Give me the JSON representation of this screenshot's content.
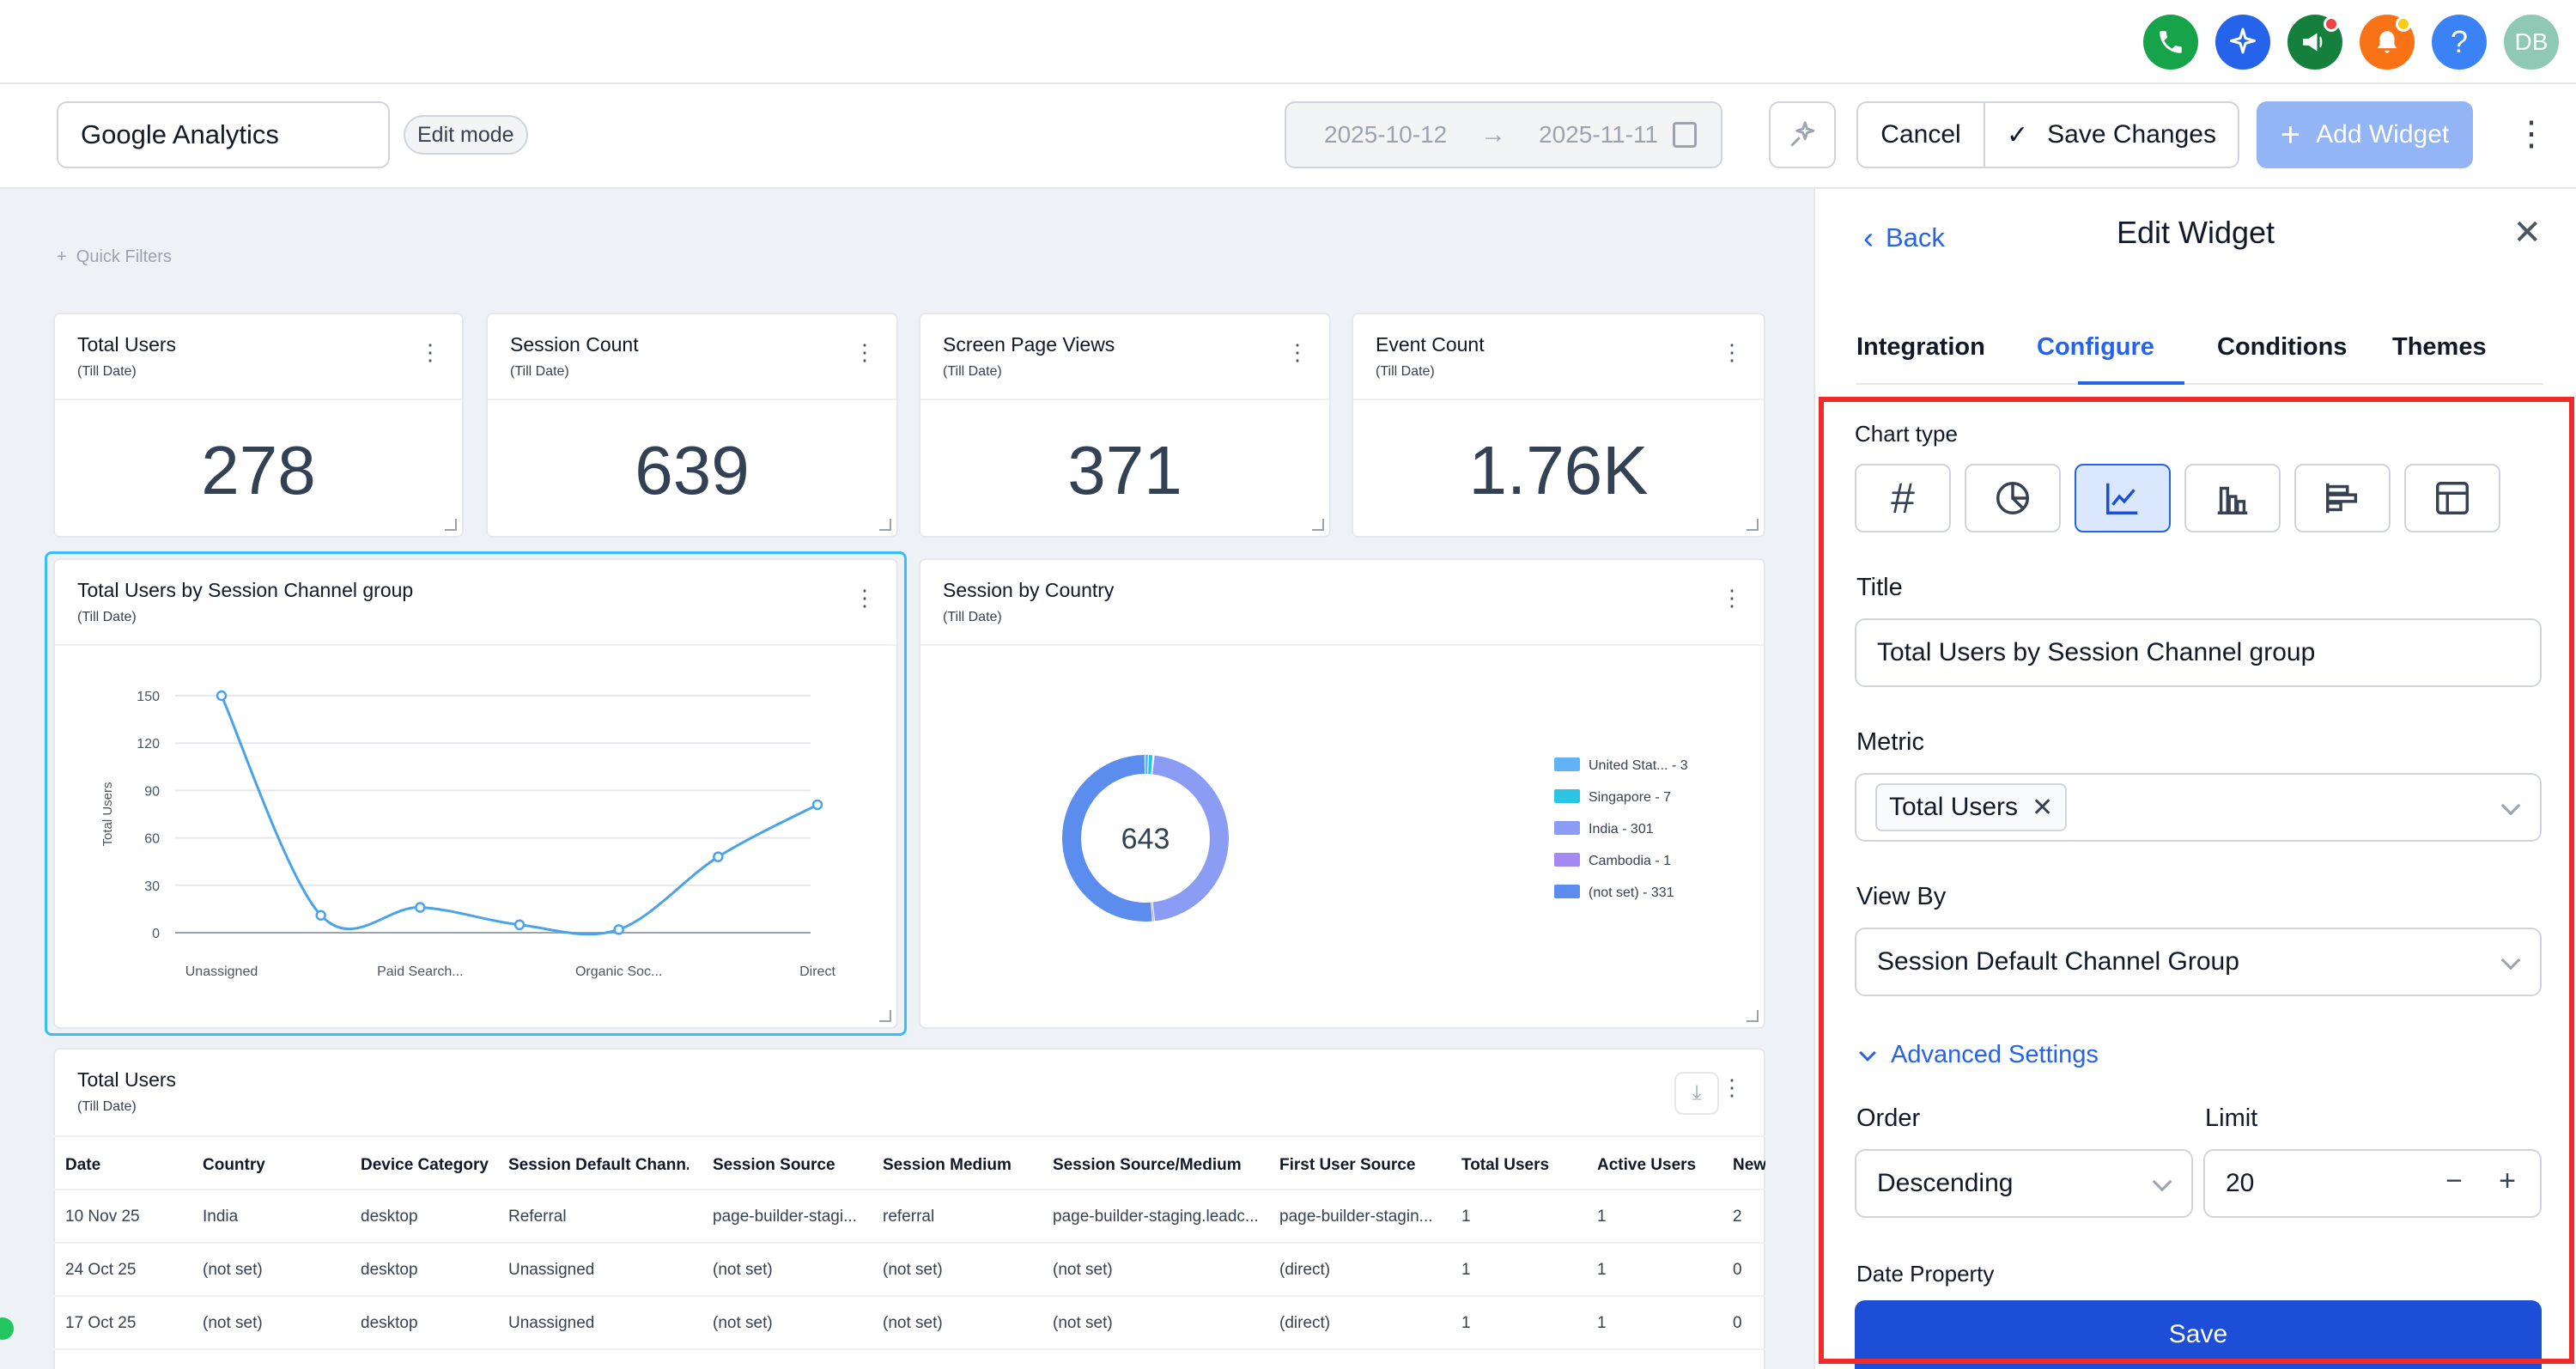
{
  "topbar": {
    "icons": [
      {
        "name": "phone-icon",
        "color": "#16a34a",
        "glyph": "✆"
      },
      {
        "name": "sparkle-icon",
        "color": "#2563eb",
        "glyph": "✦"
      },
      {
        "name": "megaphone-icon",
        "color": "#15803d",
        "glyph": "📢"
      },
      {
        "name": "bell-icon",
        "color": "#f97316",
        "glyph": "🔔"
      },
      {
        "name": "help-icon",
        "color": "#3b82f6",
        "glyph": "?"
      }
    ],
    "avatar_initials": "DB"
  },
  "header": {
    "dashboard_title": "Google Analytics",
    "mode_badge": "Edit mode",
    "date_start": "2025-10-12",
    "date_end": "2025-11-11",
    "cancel_label": "Cancel",
    "save_label": "Save Changes",
    "add_widget_label": "Add Widget"
  },
  "quick_filters_label": "Quick Filters",
  "metric_cards": [
    {
      "title": "Total Users",
      "subtitle": "(Till Date)",
      "value": "278"
    },
    {
      "title": "Session Count",
      "subtitle": "(Till Date)",
      "value": "639"
    },
    {
      "title": "Screen Page Views",
      "subtitle": "(Till Date)",
      "value": "371"
    },
    {
      "title": "Event Count",
      "subtitle": "(Till Date)",
      "value": "1.76K"
    }
  ],
  "line_widget": {
    "title": "Total Users by Session Channel group",
    "subtitle": "(Till Date)"
  },
  "donut_widget": {
    "title": "Session by Country",
    "subtitle": "(Till Date)",
    "center_label": "643"
  },
  "chart_data": [
    {
      "type": "line",
      "title": "Total Users by Session Channel group",
      "xlabel": "",
      "ylabel": "Total Users",
      "ylim": [
        0,
        150
      ],
      "yticks": [
        0,
        30,
        60,
        90,
        120,
        150
      ],
      "xtick_labels": [
        "Unassigned",
        "Paid Search...",
        "Organic Soc...",
        "Direct"
      ],
      "x": [
        "Unassigned",
        "",
        "Paid Search...",
        "",
        "Organic Soc...",
        "",
        "Direct"
      ],
      "series": [
        {
          "values": [
            150,
            11,
            16,
            5,
            2,
            48,
            81
          ]
        }
      ],
      "color": "#4aa3ea",
      "grid": true
    },
    {
      "type": "pie",
      "title": "Session by Country",
      "donut": true,
      "total_label": "643",
      "legend_position": "right",
      "slices": [
        {
          "label": "United Stat... - 3",
          "value": 3,
          "color": "#60b3f5"
        },
        {
          "label": "Singapore - 7",
          "value": 7,
          "color": "#2cc4e4"
        },
        {
          "label": "India - 301",
          "value": 301,
          "color": "#8b9cf4"
        },
        {
          "label": "Cambodia - 1",
          "value": 1,
          "color": "#a48af0"
        },
        {
          "label": "(not set) - 331",
          "value": 331,
          "color": "#5b8def"
        }
      ]
    }
  ],
  "table_widget": {
    "title": "Total Users",
    "subtitle": "(Till Date)",
    "columns": [
      "Date",
      "Country",
      "Device Category",
      "Session Default Chann...",
      "Session Source",
      "Session Medium",
      "Session Source/Medium",
      "First User Source",
      "Total Users",
      "Active Users",
      "New"
    ],
    "rows": [
      [
        "10 Nov 25",
        "India",
        "desktop",
        "Referral",
        "page-builder-stagi...",
        "referral",
        "page-builder-staging.leadc...",
        "page-builder-stagin...",
        "1",
        "1",
        "2"
      ],
      [
        "24 Oct 25",
        "(not set)",
        "desktop",
        "Unassigned",
        "(not set)",
        "(not set)",
        "(not set)",
        "(direct)",
        "1",
        "1",
        "0"
      ],
      [
        "17 Oct 25",
        "(not set)",
        "desktop",
        "Unassigned",
        "(not set)",
        "(not set)",
        "(not set)",
        "(direct)",
        "1",
        "1",
        "0"
      ]
    ]
  },
  "panel": {
    "back_label": "Back",
    "title": "Edit Widget",
    "tabs": [
      "Integration",
      "Configure",
      "Conditions",
      "Themes"
    ],
    "active_tab": "Configure",
    "chart_type_label": "Chart type",
    "chart_types": [
      "number-icon",
      "pie-chart-icon",
      "line-chart-icon",
      "bar-chart-icon",
      "horizontal-bar-chart-icon",
      "table-icon"
    ],
    "active_chart_type": "line-chart-icon",
    "title_label": "Title",
    "title_value": "Total Users by Session Channel group",
    "metric_label": "Metric",
    "metric_chip": "Total Users",
    "view_by_label": "View By",
    "view_by_value": "Session Default Channel Group",
    "advanced_label": "Advanced Settings",
    "order_label": "Order",
    "order_value": "Descending",
    "limit_label": "Limit",
    "limit_value": "20",
    "date_property_label": "Date Property",
    "save_label": "Save"
  }
}
